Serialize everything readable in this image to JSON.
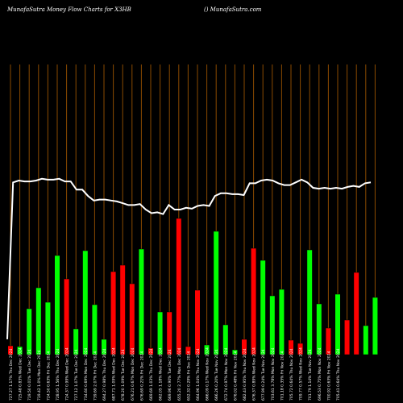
{
  "header": {
    "title_left": "MunafaSutra  Money Flow  Charts for X3HB",
    "title_right": "() MunafaSutra.com"
  },
  "chart_data": {
    "type": "bar",
    "title": "MunafaSutra  Money Flow  Charts for X3HB",
    "categories": [
      "727.27 1.17% Thu Dec 2024",
      "725.48 0.83% Wed Dec 2024",
      "719.50 0.01% Tue Dec 2024",
      "719.42 1.0% Mon Dec 2024",
      "724.50 0.63% Fri Dec 2024",
      "728.95 1.56% Thu Dec 2024",
      "724.37 0.99% Wed Dec 2024",
      "727.12 1.07% Tue Dec 2024",
      "734.60 0.69% Mon Dec 2024",
      "739.69 2.07% Fri Dec 2024",
      "694.27 0.98% Thu Dec 2024",
      "687.71 1.09% Wed Dec 2024",
      "678.20 1.09% Tue Dec 2024",
      "676.21 0.67% Mon Dec 2024",
      "676.69 0.21% Fri Dec 2024",
      "669.69 1.03% Thu Dec 2024",
      "662.05 1.18% Wed Dec 2024",
      "669.96 0.90% Tue Dec 2024",
      "655.20 2.77% Mon Dec 2024",
      "652.32 0.29% Fri Dec 2024",
      "664.96 1.04% Thu Nov 2024",
      "666.09 0.17% Wed Nov 2024",
      "666.26 0.20% Tue Nov 2024",
      "672.74 0.97% Mon Nov 2024",
      "676.02 0.48% Fri Nov 2024",
      "682.43 0.95% Thu Nov 2024",
      "676.37 0.89% Wed Nov 2024",
      "677.99 0.24% Tue Nov 2024",
      "703.61 3.78% Mon Nov 2024",
      "701.18 0.35% Fri Nov 2024",
      "705.72 0.64% Thu Nov 2024",
      "709.77 0.57% Wed Nov 2024",
      "701.79 1.14% Tue Nov 2024",
      "696.53 0.75% Mon Nov 2024",
      "700.92 0.63% Fri Nov 2024",
      "705.41 0.64% Thu Nov 2024"
    ],
    "series": [
      {
        "color": "#ff0000",
        "values": [
          11,
          10,
          57,
          71,
          31,
          46,
          8,
          103,
          102,
          108,
          10,
          18,
          11,
          25,
          10,
          0,
          0,
          0,
          22,
          14,
          122,
          0,
          60,
          12,
          0,
          0,
          0,
          0,
          0,
          0,
          39,
          38,
          0,
          101,
          10,
          0
        ]
      },
      {
        "color": "#00ff00",
        "values": [
          0,
          0,
          0,
          0,
          0,
          0,
          0,
          0,
          0,
          0,
          0,
          0,
          0,
          0,
          0,
          0,
          0,
          0,
          0,
          0,
          0,
          0,
          0,
          0,
          0,
          0,
          0,
          0,
          0,
          0,
          0,
          0,
          0,
          0,
          0,
          0
        ]
      }
    ],
    "bars": [
      {
        "value": 11,
        "color": "red"
      },
      {
        "value": 10,
        "color": "green"
      },
      {
        "value": 57,
        "color": "green"
      },
      {
        "value": 83,
        "color": "green"
      },
      {
        "value": 65,
        "color": "green"
      },
      {
        "value": 123,
        "color": "green"
      },
      {
        "value": 94,
        "color": "red"
      },
      {
        "value": 32,
        "color": "green"
      },
      {
        "value": 129,
        "color": "green"
      },
      {
        "value": 62,
        "color": "green"
      },
      {
        "value": 19,
        "color": "green"
      },
      {
        "value": 103,
        "color": "red"
      },
      {
        "value": 111,
        "color": "red"
      },
      {
        "value": 88,
        "color": "red"
      },
      {
        "value": 131,
        "color": "green"
      },
      {
        "value": 8,
        "color": "red"
      },
      {
        "value": 53,
        "color": "green"
      },
      {
        "value": 53,
        "color": "red"
      },
      {
        "value": 169,
        "color": "red"
      },
      {
        "value": 10,
        "color": "red"
      },
      {
        "value": 80,
        "color": "red"
      },
      {
        "value": 12,
        "color": "green"
      },
      {
        "value": 153,
        "color": "green"
      },
      {
        "value": 37,
        "color": "green"
      },
      {
        "value": 6,
        "color": "green"
      },
      {
        "value": 19,
        "color": "red"
      },
      {
        "value": 132,
        "color": "red"
      },
      {
        "value": 117,
        "color": "green"
      },
      {
        "value": 73,
        "color": "green"
      },
      {
        "value": 81,
        "color": "green"
      },
      {
        "value": 18,
        "color": "red"
      },
      {
        "value": 14,
        "color": "red"
      },
      {
        "value": 130,
        "color": "green"
      },
      {
        "value": 63,
        "color": "green"
      },
      {
        "value": 33,
        "color": "red"
      },
      {
        "value": 75,
        "color": "green"
      },
      {
        "value": 43,
        "color": "red"
      },
      {
        "value": 102,
        "color": "red"
      },
      {
        "value": 36,
        "color": "green"
      },
      {
        "value": 71,
        "color": "green"
      }
    ],
    "price_line": [
      17,
      190,
      192,
      191,
      191,
      192,
      194,
      193,
      193,
      194,
      191,
      191,
      182,
      182,
      175,
      170,
      171,
      171,
      170,
      169,
      167,
      165,
      165,
      166,
      160,
      156,
      157,
      155,
      165,
      160,
      160,
      162,
      161,
      164,
      165,
      164,
      175,
      178,
      178,
      177,
      177,
      176,
      189,
      189,
      192,
      193,
      192,
      189,
      187,
      187,
      190,
      193,
      190,
      184,
      183,
      184,
      183,
      184,
      183,
      185,
      186,
      185,
      189,
      190
    ],
    "price_range": [
      0,
      320
    ],
    "volume_range": [
      0,
      180
    ],
    "colors": {
      "up": "#00ff00",
      "down": "#ff0000",
      "line": "#ffffff",
      "grid": "#8a4a00",
      "background": "#000000"
    }
  }
}
